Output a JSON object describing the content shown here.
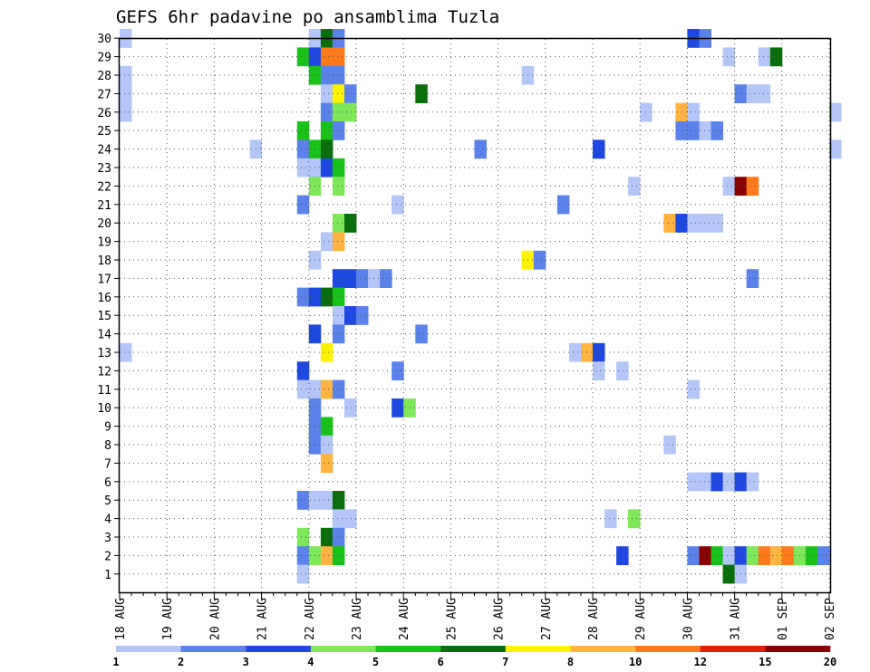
{
  "chart_data": {
    "type": "heatmap",
    "title": "GEFS 6hr padavine po ansamblima Tuzla",
    "xlabel": "",
    "ylabel": "",
    "x_tick_labels": [
      "18 AUG",
      "19 AUG",
      "20 AUG",
      "21 AUG",
      "22 AUG",
      "23 AUG",
      "24 AUG",
      "25 AUG",
      "26 AUG",
      "27 AUG",
      "28 AUG",
      "29 AUG",
      "30 AUG",
      "31 AUG",
      "01 SEP",
      "02 SEP"
    ],
    "y_tick_labels": [
      "1",
      "2",
      "3",
      "4",
      "5",
      "6",
      "7",
      "8",
      "9",
      "10",
      "11",
      "12",
      "13",
      "14",
      "15",
      "16",
      "17",
      "18",
      "19",
      "20",
      "21",
      "22",
      "23",
      "24",
      "25",
      "26",
      "27",
      "28",
      "29",
      "30"
    ],
    "x_step_hours": 6,
    "grid": true,
    "colorbar": {
      "labels": [
        "1",
        "2",
        "3",
        "4",
        "5",
        "6",
        "7",
        "8",
        "10",
        "12",
        "15",
        "20"
      ],
      "colors": [
        "#b3c6f7",
        "#5a82ea",
        "#1f48e0",
        "#7fe85a",
        "#19c219",
        "#0a6e0a",
        "#fff200",
        "#ffb340",
        "#ff7a1a",
        "#e01f0a",
        "#8a0000"
      ]
    },
    "cells": [
      [
        30,
        0,
        1
      ],
      [
        30,
        16,
        1
      ],
      [
        30,
        17,
        6
      ],
      [
        30,
        18,
        2
      ],
      [
        30,
        48,
        3
      ],
      [
        30,
        49,
        2
      ],
      [
        29,
        15,
        5
      ],
      [
        29,
        16,
        3
      ],
      [
        29,
        17,
        9
      ],
      [
        29,
        18,
        9
      ],
      [
        29,
        51,
        1
      ],
      [
        29,
        54,
        1
      ],
      [
        29,
        55,
        6
      ],
      [
        28,
        0,
        1
      ],
      [
        28,
        16,
        5
      ],
      [
        28,
        17,
        2
      ],
      [
        28,
        18,
        2
      ],
      [
        28,
        34,
        1
      ],
      [
        27,
        0,
        1
      ],
      [
        27,
        17,
        1
      ],
      [
        27,
        18,
        7
      ],
      [
        27,
        19,
        2
      ],
      [
        27,
        25,
        6
      ],
      [
        27,
        52,
        2
      ],
      [
        27,
        53,
        1
      ],
      [
        27,
        54,
        1
      ],
      [
        26,
        0,
        1
      ],
      [
        26,
        17,
        2
      ],
      [
        26,
        18,
        4
      ],
      [
        26,
        19,
        4
      ],
      [
        26,
        44,
        1
      ],
      [
        26,
        47,
        8
      ],
      [
        26,
        48,
        1
      ],
      [
        26,
        60,
        1
      ],
      [
        25,
        15,
        5
      ],
      [
        25,
        17,
        5
      ],
      [
        25,
        18,
        2
      ],
      [
        25,
        47,
        2
      ],
      [
        25,
        48,
        2
      ],
      [
        25,
        49,
        1
      ],
      [
        25,
        50,
        2
      ],
      [
        24,
        11,
        1
      ],
      [
        24,
        15,
        2
      ],
      [
        24,
        16,
        5
      ],
      [
        24,
        17,
        6
      ],
      [
        24,
        30,
        2
      ],
      [
        24,
        40,
        3
      ],
      [
        24,
        60,
        1
      ],
      [
        23,
        15,
        1
      ],
      [
        23,
        16,
        1
      ],
      [
        23,
        17,
        3
      ],
      [
        23,
        18,
        5
      ],
      [
        22,
        16,
        4
      ],
      [
        22,
        18,
        4
      ],
      [
        22,
        43,
        1
      ],
      [
        22,
        51,
        1
      ],
      [
        22,
        52,
        11
      ],
      [
        22,
        53,
        9
      ],
      [
        21,
        15,
        2
      ],
      [
        21,
        23,
        1
      ],
      [
        21,
        37,
        2
      ],
      [
        20,
        18,
        4
      ],
      [
        20,
        19,
        6
      ],
      [
        20,
        46,
        8
      ],
      [
        20,
        47,
        3
      ],
      [
        20,
        48,
        1
      ],
      [
        20,
        49,
        1
      ],
      [
        20,
        50,
        1
      ],
      [
        19,
        17,
        1
      ],
      [
        19,
        18,
        8
      ],
      [
        18,
        16,
        1
      ],
      [
        18,
        34,
        7
      ],
      [
        18,
        35,
        2
      ],
      [
        17,
        18,
        3
      ],
      [
        17,
        19,
        3
      ],
      [
        17,
        20,
        2
      ],
      [
        17,
        21,
        1
      ],
      [
        17,
        22,
        2
      ],
      [
        17,
        53,
        2
      ],
      [
        16,
        15,
        2
      ],
      [
        16,
        16,
        3
      ],
      [
        16,
        17,
        6
      ],
      [
        16,
        18,
        5
      ],
      [
        15,
        18,
        1
      ],
      [
        15,
        19,
        3
      ],
      [
        15,
        20,
        2
      ],
      [
        14,
        16,
        3
      ],
      [
        14,
        18,
        2
      ],
      [
        14,
        25,
        2
      ],
      [
        13,
        0,
        1
      ],
      [
        13,
        17,
        7
      ],
      [
        13,
        38,
        1
      ],
      [
        13,
        39,
        8
      ],
      [
        13,
        40,
        3
      ],
      [
        12,
        15,
        3
      ],
      [
        12,
        23,
        2
      ],
      [
        12,
        40,
        1
      ],
      [
        12,
        42,
        1
      ],
      [
        11,
        15,
        1
      ],
      [
        11,
        16,
        1
      ],
      [
        11,
        17,
        8
      ],
      [
        11,
        18,
        2
      ],
      [
        11,
        48,
        1
      ],
      [
        10,
        16,
        2
      ],
      [
        10,
        19,
        1
      ],
      [
        10,
        23,
        3
      ],
      [
        10,
        24,
        4
      ],
      [
        9,
        16,
        2
      ],
      [
        9,
        17,
        5
      ],
      [
        8,
        16,
        2
      ],
      [
        8,
        17,
        1
      ],
      [
        8,
        46,
        1
      ],
      [
        7,
        17,
        8
      ],
      [
        6,
        48,
        1
      ],
      [
        6,
        49,
        1
      ],
      [
        6,
        50,
        3
      ],
      [
        6,
        51,
        1
      ],
      [
        6,
        52,
        3
      ],
      [
        6,
        53,
        1
      ],
      [
        5,
        15,
        2
      ],
      [
        5,
        16,
        1
      ],
      [
        5,
        17,
        1
      ],
      [
        5,
        18,
        6
      ],
      [
        4,
        18,
        1
      ],
      [
        4,
        19,
        1
      ],
      [
        4,
        41,
        1
      ],
      [
        4,
        43,
        4
      ],
      [
        3,
        15,
        4
      ],
      [
        3,
        17,
        6
      ],
      [
        3,
        18,
        2
      ],
      [
        2,
        15,
        2
      ],
      [
        2,
        16,
        4
      ],
      [
        2,
        17,
        8
      ],
      [
        2,
        18,
        5
      ],
      [
        2,
        42,
        3
      ],
      [
        2,
        48,
        2
      ],
      [
        2,
        49,
        11
      ],
      [
        2,
        50,
        5
      ],
      [
        2,
        51,
        1
      ],
      [
        2,
        52,
        3
      ],
      [
        2,
        53,
        4
      ],
      [
        2,
        54,
        9
      ],
      [
        2,
        55,
        8
      ],
      [
        2,
        56,
        9
      ],
      [
        2,
        57,
        4
      ],
      [
        2,
        58,
        5
      ],
      [
        2,
        59,
        2
      ],
      [
        1,
        15,
        1
      ],
      [
        1,
        51,
        6
      ],
      [
        1,
        52,
        1
      ]
    ]
  }
}
